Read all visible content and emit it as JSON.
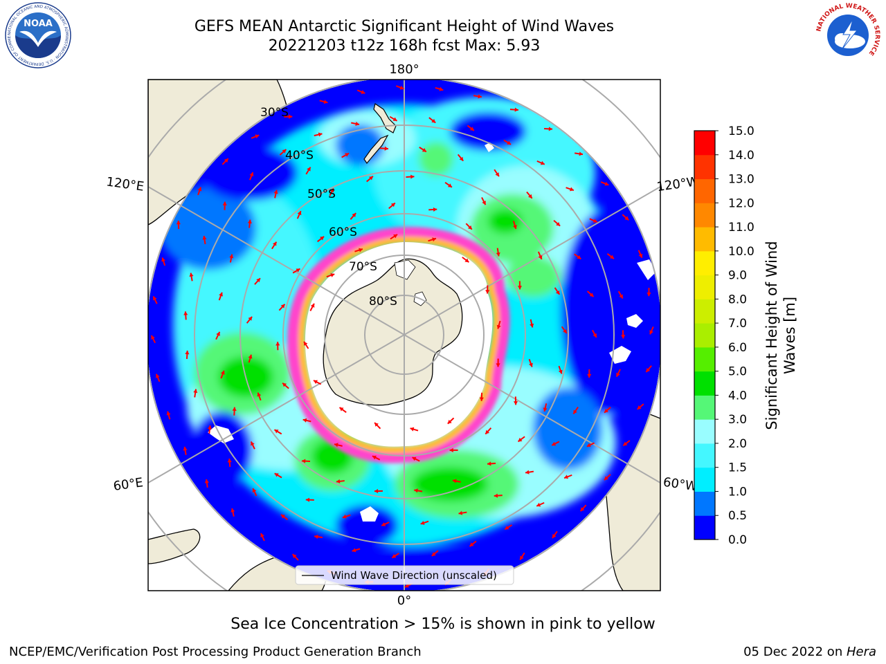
{
  "title": {
    "line1": "GEFS MEAN Antarctic Significant Height of Wind Waves",
    "line2": "20221203 t12z 168h fcst   Max: 5.93"
  },
  "logos": {
    "left": {
      "name": "noaa-logo",
      "text": "NOAA",
      "ring_text": "NATIONAL OCEANIC AND ATMOSPHERIC ADMINISTRATION · U.S. DEPARTMENT OF COMMERCE"
    },
    "right": {
      "name": "nws-logo",
      "ring_text": "NATIONAL WEATHER SERVICE"
    }
  },
  "map": {
    "projection": "south polar stereographic",
    "longitude_labels": [
      "180°",
      "120°E",
      "120°W",
      "60°E",
      "60°W",
      "0°"
    ],
    "latitude_labels": [
      "30°S",
      "40°S",
      "50°S",
      "60°S",
      "70°S",
      "80°S"
    ],
    "legend_label": "Wind Wave Direction (unscaled)",
    "arrow_color": "#ff0000"
  },
  "colorbar": {
    "title_line1": "Significant Height of Wind",
    "title_line2": "Waves [m]",
    "tick_labels": [
      "0.0",
      "0.5",
      "1.0",
      "1.5",
      "2.0",
      "3.0",
      "4.0",
      "5.0",
      "6.0",
      "7.0",
      "8.0",
      "9.0",
      "10.0",
      "11.0",
      "12.0",
      "13.0",
      "14.0",
      "15.0"
    ],
    "colors": [
      "#0000ff",
      "#0077ff",
      "#00eeff",
      "#44f7ff",
      "#99fdff",
      "#55f777",
      "#00e000",
      "#55ee00",
      "#aaee00",
      "#ccee00",
      "#eeee00",
      "#ffee00",
      "#ffbb00",
      "#ff8800",
      "#ff6600",
      "#ff3300",
      "#ff0000"
    ]
  },
  "colors": {
    "land": "#efebd8",
    "ice": "#ffffff",
    "ice_edge_pink": "#ff44cc",
    "ice_edge_orange": "#ffbb33"
  },
  "caption": "Sea Ice Concentration > 15% is shown in pink to yellow",
  "footer": {
    "left": "NCEP/EMC/Verification Post Processing Product Generation Branch",
    "right_date": "05 Dec 2022 on ",
    "right_host": "Hera"
  }
}
